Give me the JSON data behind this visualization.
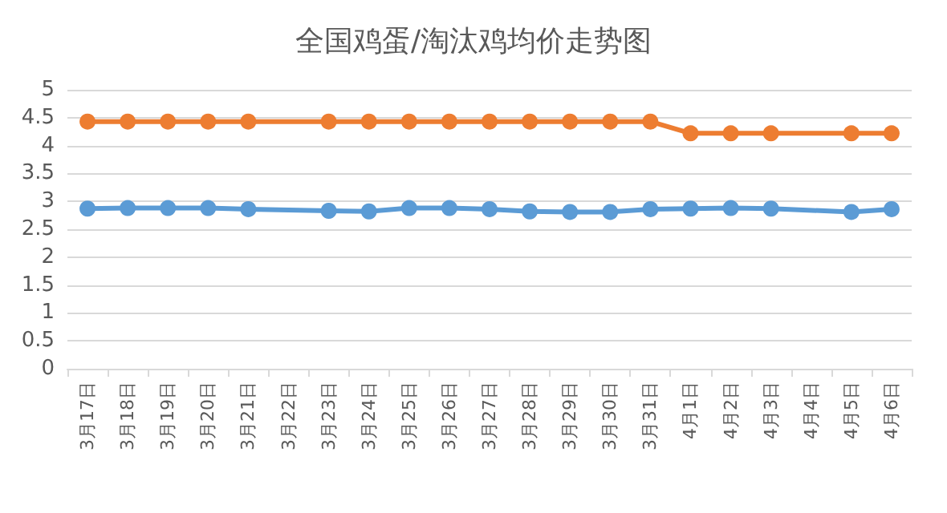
{
  "chart_data": {
    "type": "line",
    "title": "全国鸡蛋/淘汰鸡均价走势图",
    "categories": [
      "3月17日",
      "3月18日",
      "3月19日",
      "3月20日",
      "3月21日",
      "3月22日",
      "3月23日",
      "3月24日",
      "3月25日",
      "3月26日",
      "3月27日",
      "3月28日",
      "3月29日",
      "3月30日",
      "3月31日",
      "4月1日",
      "4月2日",
      "4月3日",
      "4月4日",
      "4月5日",
      "4月6日"
    ],
    "series": [
      {
        "color": "#ed7d31",
        "values": [
          4.43,
          4.43,
          4.43,
          4.43,
          4.43,
          null,
          4.43,
          4.43,
          4.43,
          4.43,
          4.43,
          4.43,
          4.43,
          4.43,
          4.43,
          4.22,
          4.22,
          4.22,
          null,
          4.22,
          4.22
        ]
      },
      {
        "color": "#5b9bd5",
        "values": [
          2.87,
          2.88,
          2.88,
          2.88,
          2.86,
          null,
          2.83,
          2.82,
          2.88,
          2.88,
          2.86,
          2.82,
          2.81,
          2.81,
          2.86,
          2.87,
          2.88,
          2.87,
          null,
          2.81,
          2.86
        ]
      }
    ],
    "ylim": [
      0,
      5
    ],
    "yticks": [
      0,
      0.5,
      1,
      1.5,
      2,
      2.5,
      3,
      3.5,
      4,
      4.5,
      5
    ],
    "grid": "y",
    "marker": "circle",
    "line_style": "solid"
  }
}
